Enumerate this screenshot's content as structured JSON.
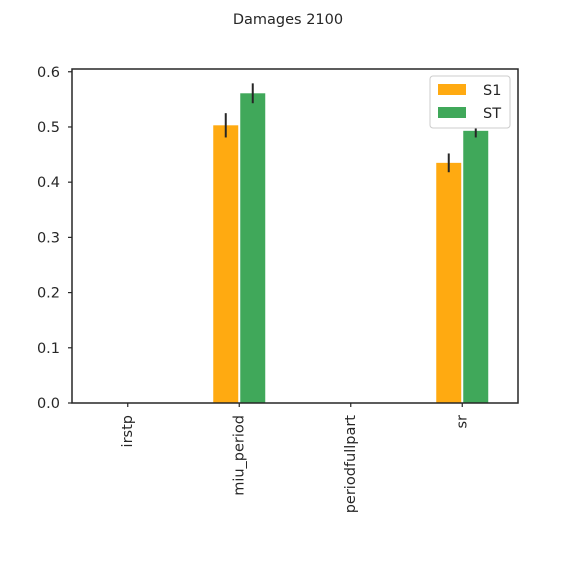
{
  "chart_data": {
    "type": "bar",
    "title": "Damages 2100",
    "xlabel": "",
    "ylabel": "",
    "categories": [
      "irstp",
      "miu_period",
      "periodfullpart",
      "sr"
    ],
    "series": [
      {
        "name": "S1",
        "color": "#FFAA11",
        "values": [
          0.0,
          0.503,
          0.0,
          0.435
        ],
        "errors": [
          0.0,
          0.022,
          0.0,
          0.017
        ]
      },
      {
        "name": "ST",
        "color": "#40A85A",
        "values": [
          0.0,
          0.561,
          0.0,
          0.493
        ],
        "errors": [
          0.0,
          0.018,
          0.0,
          0.012
        ]
      }
    ],
    "ylim": [
      0,
      0.605
    ],
    "yticks": [
      0.0,
      0.1,
      0.2,
      0.3,
      0.4,
      0.5,
      0.6
    ],
    "ytick_labels": [
      "0.0",
      "0.1",
      "0.2",
      "0.3",
      "0.4",
      "0.5",
      "0.6"
    ],
    "grid": false,
    "legend_position": "top-right"
  }
}
